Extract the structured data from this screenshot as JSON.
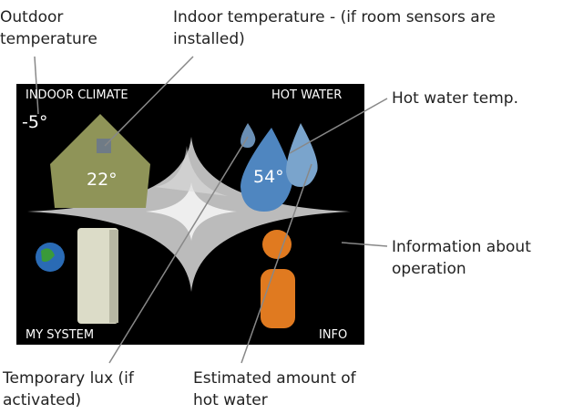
{
  "callouts": [
    {
      "lines": [
        "Outdoor",
        "temperature"
      ]
    },
    {
      "lines": [
        "Indoor temperature - (if room sensors are",
        "installed)"
      ]
    },
    {
      "lines": [
        "Hot water temp."
      ]
    },
    {
      "lines": [
        "Information about",
        "operation"
      ]
    },
    {
      "lines": [
        "Temporary lux  (if",
        "activated)"
      ]
    },
    {
      "lines": [
        "Estimated amount of",
        "hot water"
      ]
    }
  ],
  "screen": {
    "indoor_climate": "INDOOR CLIMATE",
    "hot_water": "HOT WATER",
    "my_system": "MY SYSTEM",
    "info": "INFO",
    "outdoor_temp": "-5°",
    "indoor_temp": "22°",
    "water_temp": "54°"
  }
}
